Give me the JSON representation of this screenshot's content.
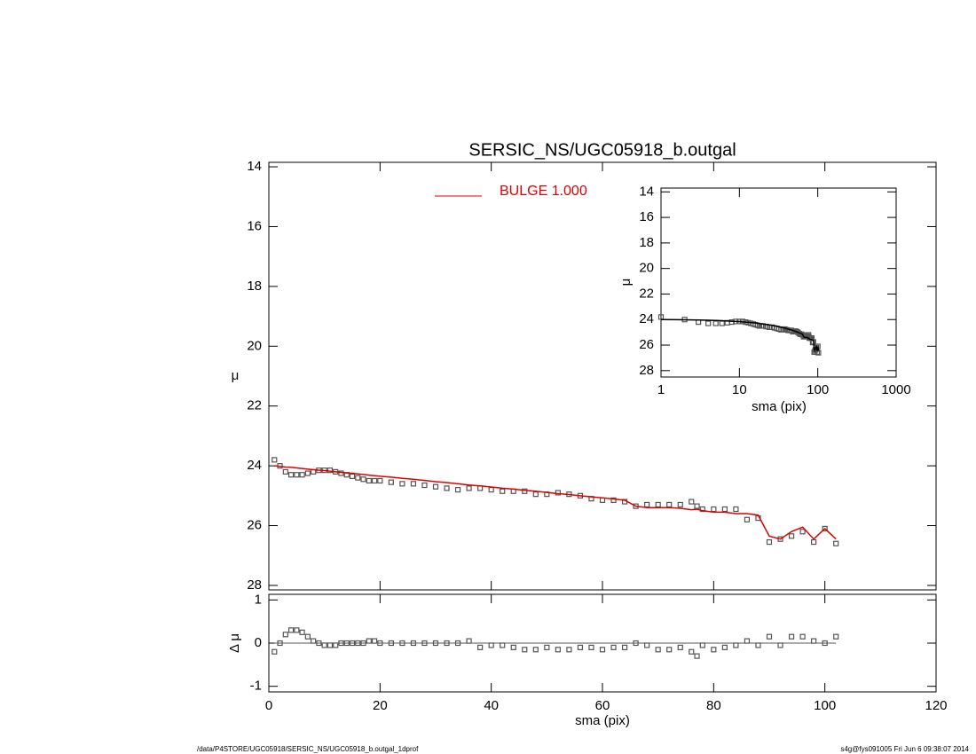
{
  "chart_data": [
    {
      "type": "scatter",
      "title": "SERSIC_NS/UGC05918_b.outgal",
      "ylabel": "μ",
      "x": [
        1,
        2,
        3,
        4,
        5,
        6,
        7,
        8,
        9,
        10,
        11,
        12,
        13,
        14,
        15,
        16,
        17,
        18,
        19,
        20,
        22,
        24,
        26,
        28,
        30,
        32,
        34,
        36,
        38,
        40,
        42,
        44,
        46,
        48,
        50,
        52,
        54,
        56,
        58,
        60,
        62,
        64,
        66,
        68,
        70,
        72,
        74,
        76,
        77,
        78,
        80,
        82,
        84,
        86,
        88,
        90,
        92,
        94,
        96,
        98,
        100,
        102
      ],
      "series": [
        {
          "color": "#555555",
          "marker": "square",
          "values": [
            23.8,
            24.0,
            24.2,
            24.3,
            24.3,
            24.3,
            24.25,
            24.2,
            24.15,
            24.15,
            24.15,
            24.2,
            24.25,
            24.3,
            24.35,
            24.4,
            24.45,
            24.5,
            24.5,
            24.5,
            24.55,
            24.6,
            24.6,
            24.65,
            24.7,
            24.75,
            24.8,
            24.75,
            24.75,
            24.8,
            24.85,
            24.85,
            24.85,
            24.95,
            24.95,
            24.9,
            24.95,
            25.0,
            25.1,
            25.15,
            25.15,
            25.2,
            25.35,
            25.3,
            25.3,
            25.3,
            25.3,
            25.2,
            25.35,
            25.45,
            25.45,
            25.45,
            25.45,
            25.8,
            25.75,
            26.55,
            26.45,
            26.35,
            26.2,
            26.55,
            26.1,
            26.6
          ]
        },
        {
          "name": "BULGE  1.000",
          "color": "#e00000",
          "marker": "line",
          "values": [
            24.0,
            24.02,
            24.04,
            24.05,
            24.07,
            24.09,
            24.11,
            24.13,
            24.15,
            24.16,
            24.18,
            24.2,
            24.22,
            24.24,
            24.25,
            24.27,
            24.29,
            24.31,
            24.33,
            24.35,
            24.38,
            24.42,
            24.45,
            24.49,
            24.53,
            24.56,
            24.6,
            24.64,
            24.67,
            24.71,
            24.75,
            24.78,
            24.82,
            24.85,
            24.89,
            24.93,
            24.96,
            25.0,
            25.04,
            25.07,
            25.11,
            25.15,
            25.35,
            25.4,
            25.4,
            25.4,
            25.42,
            25.47,
            25.45,
            25.5,
            25.55,
            25.55,
            25.6,
            25.6,
            25.65,
            26.35,
            26.45,
            26.2,
            26.05,
            26.45,
            26.1,
            26.45
          ]
        }
      ],
      "xlim": [
        0,
        120
      ],
      "ylim": [
        13.85,
        28.15
      ],
      "y_inverted": true,
      "yticks": [
        14,
        16,
        18,
        20,
        22,
        24,
        26,
        28
      ]
    },
    {
      "type": "scatter",
      "ylabel": "Δ μ",
      "xlabel": "sma (pix)",
      "color": "#555555",
      "values": [
        -0.2,
        0.0,
        0.2,
        0.3,
        0.3,
        0.25,
        0.15,
        0.05,
        0.0,
        -0.05,
        -0.05,
        -0.05,
        0.0,
        0.0,
        0.0,
        0.0,
        0.0,
        0.05,
        0.05,
        0.0,
        0.0,
        0.0,
        0.0,
        0.0,
        0.0,
        0.0,
        0.0,
        0.05,
        -0.1,
        -0.05,
        -0.05,
        -0.1,
        -0.15,
        -0.15,
        -0.1,
        -0.15,
        -0.15,
        -0.1,
        -0.1,
        -0.15,
        -0.1,
        -0.1,
        0.0,
        -0.05,
        -0.15,
        -0.15,
        -0.1,
        -0.2,
        -0.3,
        -0.05,
        -0.15,
        -0.1,
        -0.05,
        0.05,
        -0.05,
        0.15,
        -0.05,
        0.15,
        0.15,
        0.05,
        0.0,
        0.15
      ],
      "xlim": [
        0,
        120
      ],
      "xticks": [
        0,
        20,
        40,
        60,
        80,
        100,
        120
      ],
      "ylim": [
        -1.13,
        1.13
      ],
      "yticks": [
        -1,
        0,
        1
      ],
      "reference_line": 0
    },
    {
      "type": "scatter",
      "xlabel": "sma (pix)",
      "ylabel": "μ",
      "log_x": true,
      "xlim": [
        1,
        1000
      ],
      "xticks": [
        1,
        10,
        100,
        1000
      ],
      "ylim": [
        13.7,
        28.5
      ],
      "y_inverted": true,
      "yticks": [
        14,
        16,
        18,
        20,
        22,
        24,
        26,
        28
      ]
    }
  ],
  "footer": {
    "left": "/data/P4STORE/UGC05918/SERSIC_NS/UGC05918_b.outgal_1dprof",
    "right": "s4g@fys091005  Fri Jun  6 09:38:07 2014"
  }
}
